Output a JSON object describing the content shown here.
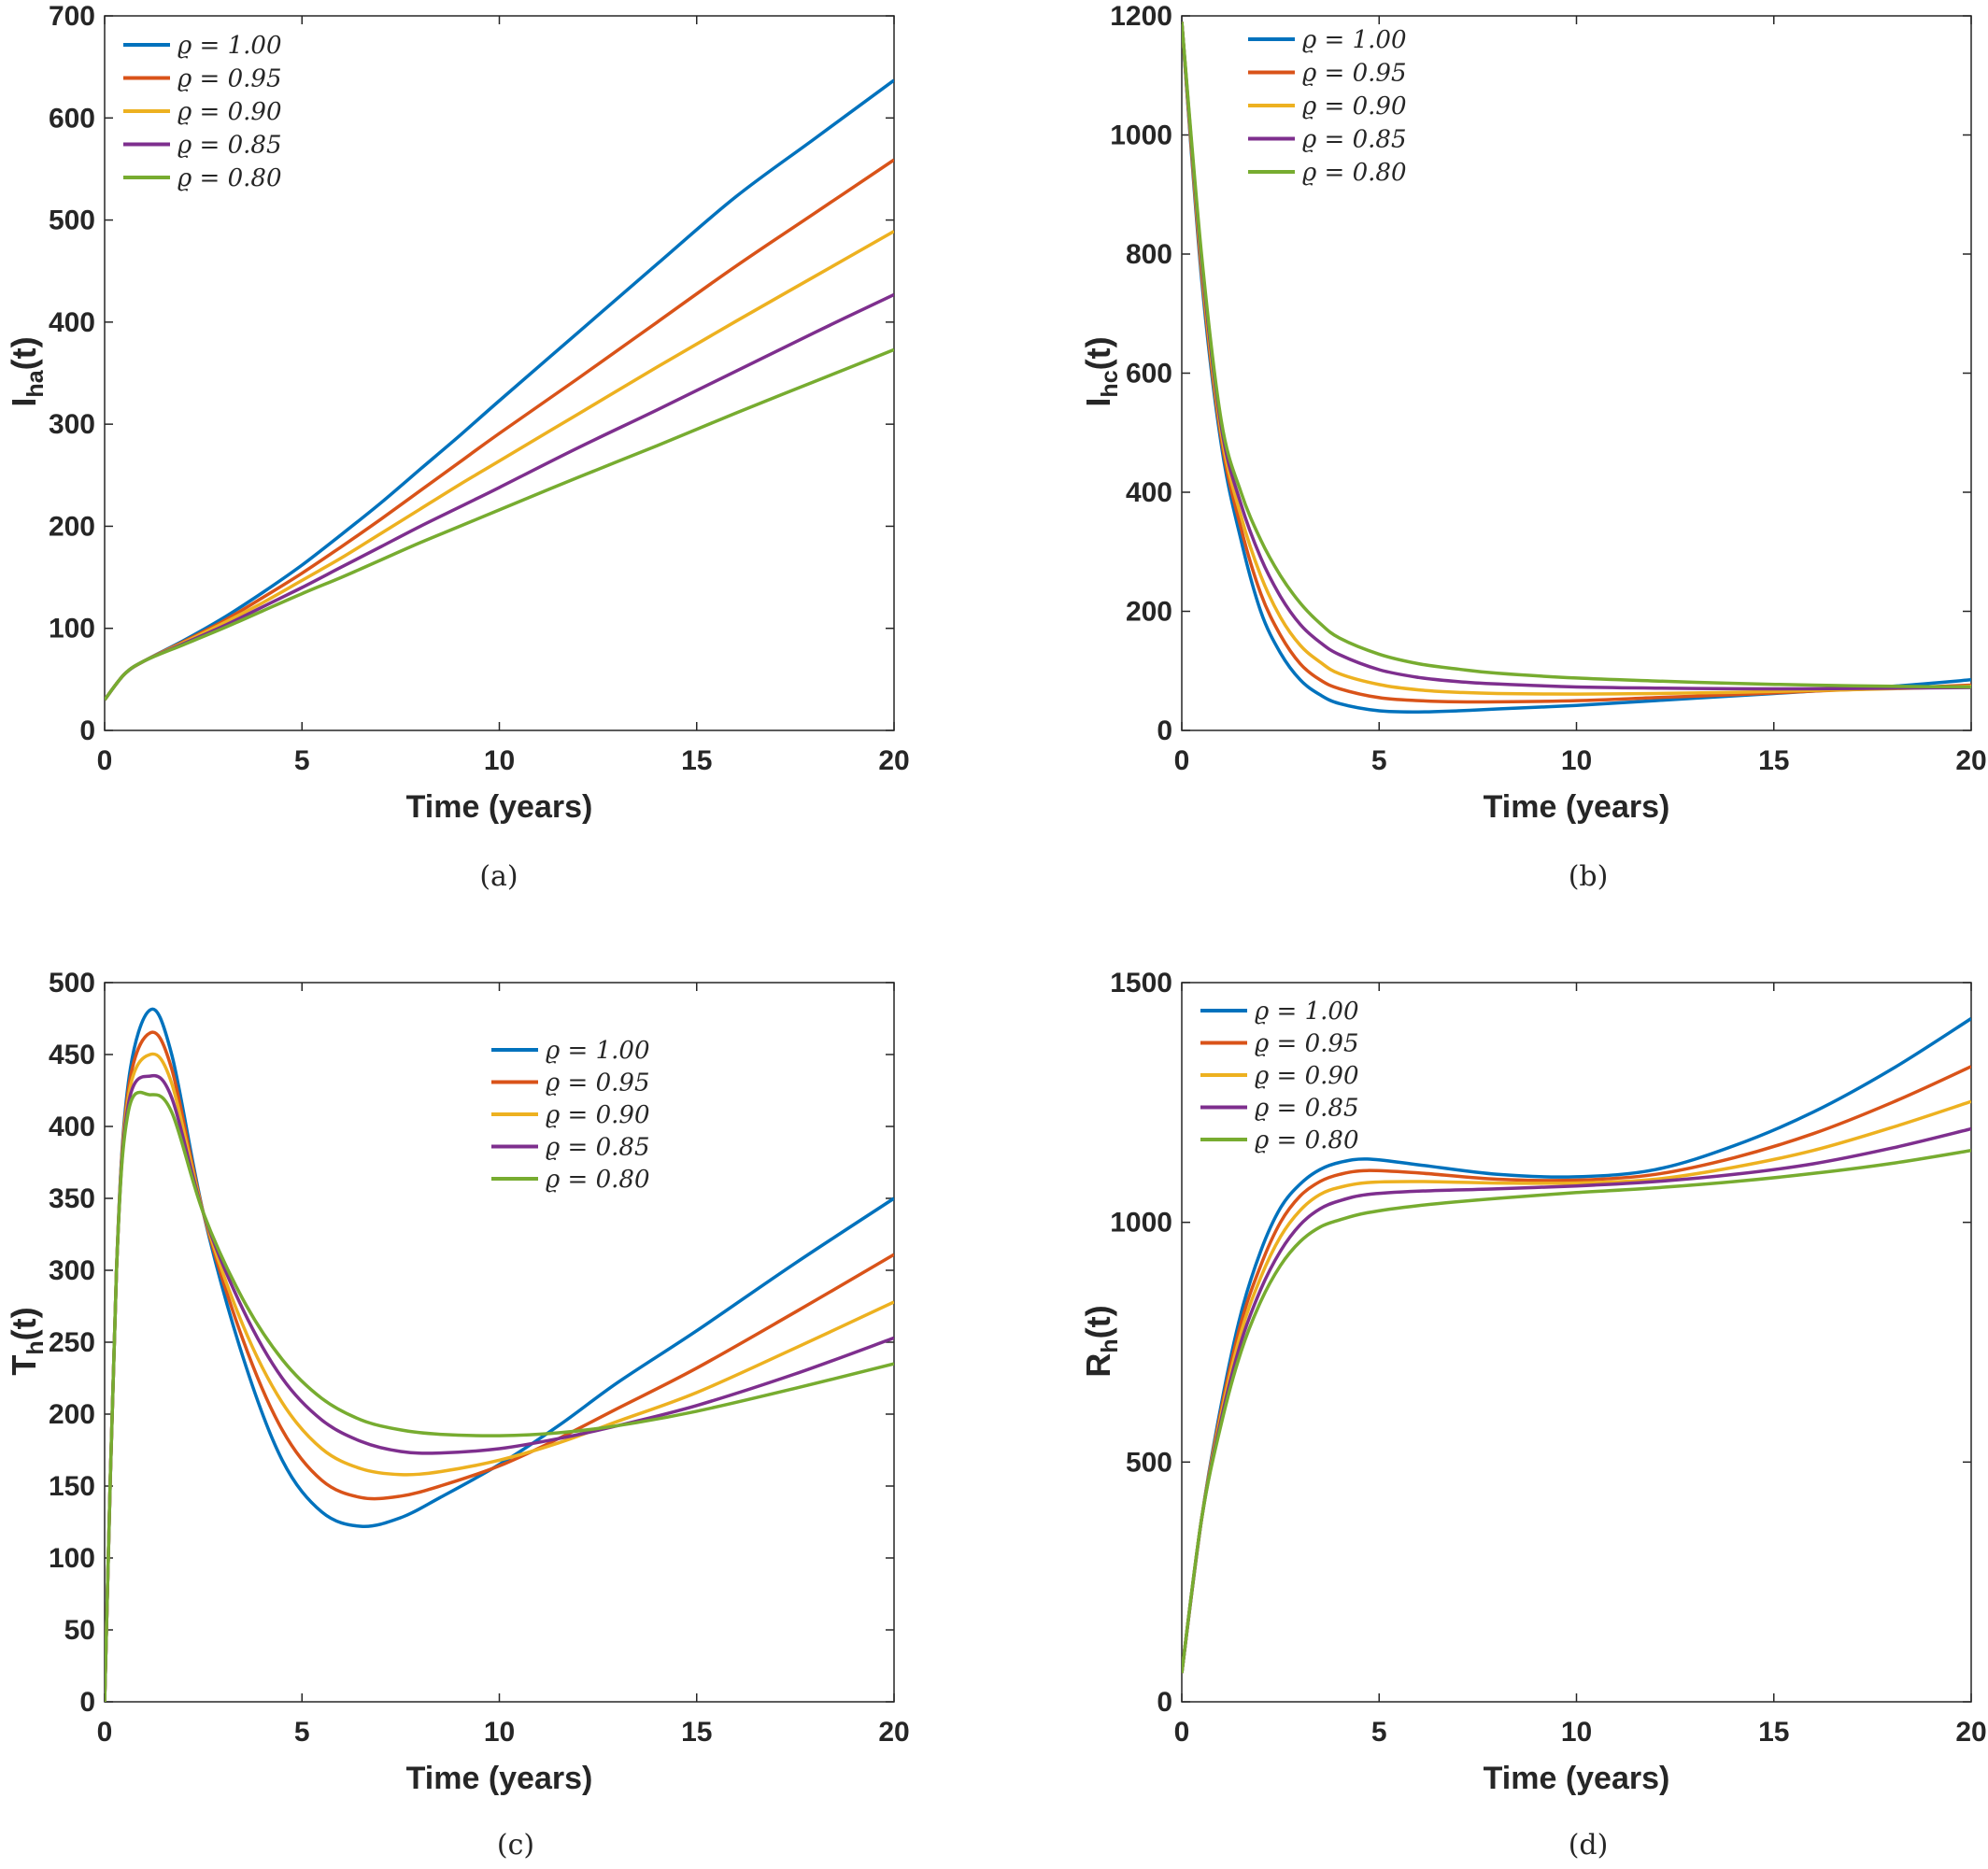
{
  "figure": {
    "captions": [
      "(a)",
      "(b)",
      "(c)",
      "(d)"
    ]
  },
  "colors": {
    "rho_1_00": "#0072BD",
    "rho_0_95": "#D95319",
    "rho_0_90": "#EDB120",
    "rho_0_85": "#7E2F8E",
    "rho_0_80": "#77AC30"
  },
  "chart_data": [
    {
      "type": "line",
      "caption": "(a)",
      "xlabel": "Time (years)",
      "ylabel_main": "I",
      "ylabel_sub": "ha",
      "ylabel_suffix": "(t)",
      "xlim": [
        0,
        20
      ],
      "ylim": [
        0,
        700
      ],
      "xticks": [
        0,
        5,
        10,
        15,
        20
      ],
      "yticks": [
        0,
        100,
        200,
        300,
        400,
        500,
        600,
        700
      ],
      "legend_position": "top-left",
      "grid": false,
      "x": [
        0,
        0.5,
        1,
        2,
        3,
        4,
        5,
        6,
        7,
        8,
        9,
        10,
        12,
        14,
        16,
        18,
        20
      ],
      "series": [
        {
          "name": "ϱ = 1.00",
          "color": "#0072BD",
          "values": [
            30,
            55,
            68,
            88,
            110,
            135,
            162,
            192,
            223,
            256,
            289,
            323,
            390,
            457,
            523,
            580,
            637
          ]
        },
        {
          "name": "ϱ = 0.95",
          "color": "#D95319",
          "values": [
            30,
            55,
            68,
            87,
            107,
            130,
            154,
            180,
            207,
            235,
            263,
            291,
            345,
            400,
            455,
            507,
            559
          ]
        },
        {
          "name": "ϱ = 0.90",
          "color": "#EDB120",
          "values": [
            30,
            55,
            68,
            86,
            105,
            125,
            147,
            169,
            193,
            217,
            241,
            264,
            310,
            356,
            401,
            445,
            489
          ]
        },
        {
          "name": "ϱ = 0.85",
          "color": "#7E2F8E",
          "values": [
            30,
            55,
            68,
            85,
            102,
            121,
            140,
            160,
            180,
            200,
            219,
            238,
            277,
            314,
            352,
            390,
            427
          ]
        },
        {
          "name": "ϱ = 0.80",
          "color": "#77AC30",
          "values": [
            30,
            55,
            68,
            84,
            100,
            117,
            134,
            150,
            167,
            184,
            200,
            216,
            248,
            279,
            311,
            342,
            373
          ]
        }
      ]
    },
    {
      "type": "line",
      "caption": "(b)",
      "xlabel": "Time (years)",
      "ylabel_main": "I",
      "ylabel_sub": "hc",
      "ylabel_suffix": "(t)",
      "xlim": [
        0,
        20
      ],
      "ylim": [
        0,
        1200
      ],
      "xticks": [
        0,
        5,
        10,
        15,
        20
      ],
      "yticks": [
        0,
        200,
        400,
        600,
        800,
        1000,
        1200
      ],
      "legend_position": "top-left",
      "grid": false,
      "x": [
        0,
        0.5,
        1,
        1.5,
        2,
        2.5,
        3,
        3.5,
        4,
        5,
        6,
        7,
        8,
        10,
        12,
        14,
        16,
        18,
        20
      ],
      "series": [
        {
          "name": "ϱ = 1.00",
          "color": "#0072BD",
          "values": [
            1190,
            760,
            480,
            320,
            200,
            130,
            85,
            60,
            45,
            33,
            31,
            33,
            36,
            42,
            50,
            58,
            66,
            74,
            85
          ]
        },
        {
          "name": "ϱ = 0.95",
          "color": "#D95319",
          "values": [
            1190,
            770,
            490,
            340,
            230,
            160,
            112,
            85,
            70,
            55,
            50,
            48,
            48,
            50,
            55,
            60,
            66,
            71,
            76
          ]
        },
        {
          "name": "ϱ = 0.90",
          "color": "#EDB120",
          "values": [
            1190,
            780,
            500,
            360,
            260,
            190,
            143,
            115,
            95,
            77,
            68,
            64,
            62,
            61,
            62,
            64,
            67,
            70,
            74
          ]
        },
        {
          "name": "ϱ = 0.85",
          "color": "#7E2F8E",
          "values": [
            1190,
            790,
            510,
            380,
            290,
            225,
            178,
            148,
            127,
            102,
            89,
            82,
            78,
            73,
            71,
            70,
            70,
            71,
            72
          ]
        },
        {
          "name": "ϱ = 0.80",
          "color": "#77AC30",
          "values": [
            1190,
            800,
            520,
            400,
            320,
            260,
            214,
            180,
            155,
            128,
            112,
            103,
            96,
            88,
            83,
            79,
            76,
            74,
            73
          ]
        }
      ]
    },
    {
      "type": "line",
      "caption": "(c)",
      "xlabel": "Time (years)",
      "ylabel_main": "T",
      "ylabel_sub": "h",
      "ylabel_suffix": "(t)",
      "xlim": [
        0,
        20
      ],
      "ylim": [
        0,
        500
      ],
      "xticks": [
        0,
        5,
        10,
        15,
        20
      ],
      "yticks": [
        0,
        50,
        100,
        150,
        200,
        250,
        300,
        350,
        400,
        450,
        500
      ],
      "legend_position": "top-right",
      "grid": false,
      "x": [
        0,
        0.3,
        0.6,
        1.15,
        1.7,
        2.5,
        3.5,
        4.5,
        5.5,
        6.5,
        7.5,
        8.5,
        10,
        11.5,
        13,
        15,
        17.5,
        20
      ],
      "series": [
        {
          "name": "ϱ = 1.00",
          "color": "#0072BD",
          "values": [
            0,
            300,
            430,
            481,
            450,
            340,
            240,
            168,
            132,
            122,
            128,
            142,
            165,
            192,
            222,
            258,
            305,
            350
          ]
        },
        {
          "name": "ϱ = 0.95",
          "color": "#D95319",
          "values": [
            0,
            300,
            425,
            465,
            440,
            340,
            252,
            189,
            154,
            142,
            143,
            150,
            164,
            183,
            204,
            232,
            271,
            311
          ]
        },
        {
          "name": "ϱ = 0.90",
          "color": "#EDB120",
          "values": [
            0,
            300,
            420,
            450,
            430,
            340,
            262,
            208,
            176,
            162,
            158,
            160,
            168,
            180,
            195,
            215,
            246,
            278
          ]
        },
        {
          "name": "ϱ = 0.85",
          "color": "#7E2F8E",
          "values": [
            0,
            300,
            415,
            435,
            420,
            340,
            273,
            225,
            196,
            181,
            174,
            173,
            176,
            183,
            192,
            206,
            228,
            253
          ]
        },
        {
          "name": "ϱ = 0.80",
          "color": "#77AC30",
          "values": [
            0,
            300,
            410,
            422,
            410,
            340,
            280,
            238,
            211,
            196,
            189,
            186,
            185,
            187,
            192,
            202,
            218,
            235
          ]
        }
      ]
    },
    {
      "type": "line",
      "caption": "(d)",
      "xlabel": "Time (years)",
      "ylabel_main": "R",
      "ylabel_sub": "h",
      "ylabel_suffix": "(t)",
      "xlim": [
        0,
        20
      ],
      "ylim": [
        0,
        1500
      ],
      "xticks": [
        0,
        5,
        10,
        15,
        20
      ],
      "yticks": [
        0,
        500,
        1000,
        1500
      ],
      "legend_position": "top-left",
      "grid": false,
      "x": [
        0,
        0.5,
        1,
        1.5,
        2,
        2.5,
        3,
        3.5,
        4,
        4.7,
        6,
        8,
        10,
        12,
        14,
        16,
        18,
        20
      ],
      "series": [
        {
          "name": "ϱ = 1.00",
          "color": "#0072BD",
          "values": [
            60,
            380,
            620,
            810,
            940,
            1030,
            1080,
            1110,
            1125,
            1132,
            1120,
            1100,
            1095,
            1110,
            1160,
            1230,
            1320,
            1425
          ]
        },
        {
          "name": "ϱ = 0.95",
          "color": "#D95319",
          "values": [
            60,
            380,
            610,
            790,
            910,
            1000,
            1055,
            1085,
            1100,
            1108,
            1103,
            1090,
            1088,
            1100,
            1135,
            1185,
            1250,
            1325
          ]
        },
        {
          "name": "ϱ = 0.90",
          "color": "#EDB120",
          "values": [
            60,
            380,
            600,
            770,
            885,
            970,
            1025,
            1058,
            1073,
            1083,
            1085,
            1082,
            1082,
            1090,
            1115,
            1150,
            1198,
            1252
          ]
        },
        {
          "name": "ϱ = 0.85",
          "color": "#7E2F8E",
          "values": [
            60,
            380,
            590,
            750,
            860,
            940,
            995,
            1028,
            1045,
            1058,
            1065,
            1070,
            1076,
            1085,
            1100,
            1122,
            1155,
            1195
          ]
        },
        {
          "name": "ϱ = 0.80",
          "color": "#77AC30",
          "values": [
            60,
            380,
            580,
            730,
            835,
            910,
            960,
            990,
            1005,
            1020,
            1035,
            1050,
            1062,
            1072,
            1085,
            1102,
            1123,
            1150
          ]
        }
      ]
    }
  ]
}
